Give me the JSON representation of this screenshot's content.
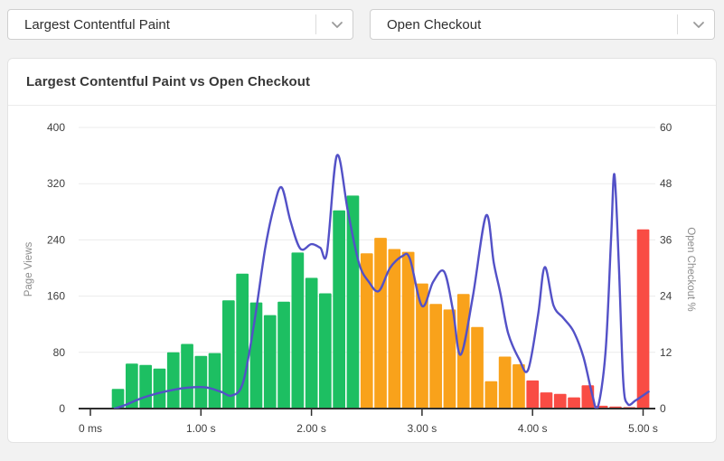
{
  "controls": {
    "metric_select": {
      "value": "Largest Contentful Paint"
    },
    "conversion_select": {
      "value": "Open Checkout"
    }
  },
  "card": {
    "title": "Largest Contentful Paint vs Open Checkout"
  },
  "colors": {
    "bar_good": "#1dbf62",
    "bar_needs_improvement": "#f9a21b",
    "bar_poor": "#f94c44",
    "line": "#5351c7",
    "gridline": "#ebebeb",
    "axis_line": "#2e2e2e"
  },
  "chart_data": {
    "type": "bar",
    "subtype": "histogram-with-line-overlay",
    "title": "Largest Contentful Paint vs Open Checkout",
    "x_axis": {
      "tick_labels": [
        "0 ms",
        "1.00 s",
        "2.00 s",
        "3.00 s",
        "4.00 s",
        "5.00 s"
      ],
      "tick_seconds": [
        0,
        1,
        2,
        3,
        4,
        5
      ],
      "range_seconds": [
        0,
        5.0625
      ],
      "grid": false
    },
    "left_axis": {
      "label": "Page Views",
      "ticks": [
        0,
        80,
        160,
        240,
        320,
        400
      ],
      "range": [
        0,
        400
      ],
      "grid": true
    },
    "right_axis": {
      "label": "Open Checkout %",
      "ticks": [
        0,
        12,
        24,
        36,
        48,
        60
      ],
      "range": [
        0,
        60
      ]
    },
    "histogram": {
      "series_name": "Page Views",
      "first_bin_start_s": 0.1875,
      "bin_width_s": 0.125,
      "values": [
        28,
        64,
        62,
        57,
        80,
        92,
        75,
        79,
        154,
        192,
        151,
        133,
        152,
        222,
        186,
        164,
        282,
        303,
        221,
        243,
        227,
        223,
        178,
        149,
        141,
        163,
        116,
        39,
        74,
        63,
        40,
        23,
        21,
        16,
        33,
        4,
        3,
        2,
        255
      ],
      "segment_keys": [
        "good",
        "good",
        "good",
        "good",
        "good",
        "good",
        "good",
        "good",
        "good",
        "good",
        "good",
        "good",
        "good",
        "good",
        "good",
        "good",
        "good",
        "good",
        "needs_improvement",
        "needs_improvement",
        "needs_improvement",
        "needs_improvement",
        "needs_improvement",
        "needs_improvement",
        "needs_improvement",
        "needs_improvement",
        "needs_improvement",
        "needs_improvement",
        "needs_improvement",
        "needs_improvement",
        "poor",
        "poor",
        "poor",
        "poor",
        "poor",
        "poor",
        "poor",
        "poor",
        "poor"
      ]
    },
    "line": {
      "series_name": "Open Checkout %",
      "points": [
        [
          0.22,
          0
        ],
        [
          0.32,
          0.8
        ],
        [
          0.45,
          2.1
        ],
        [
          0.6,
          3.2
        ],
        [
          0.75,
          4.0
        ],
        [
          0.9,
          4.5
        ],
        [
          1.05,
          4.5
        ],
        [
          1.18,
          3.6
        ],
        [
          1.28,
          2.8
        ],
        [
          1.38,
          5.5
        ],
        [
          1.48,
          18
        ],
        [
          1.58,
          34
        ],
        [
          1.66,
          43
        ],
        [
          1.73,
          47.2
        ],
        [
          1.81,
          40
        ],
        [
          1.9,
          34.1
        ],
        [
          2.0,
          35.1
        ],
        [
          2.08,
          34.3
        ],
        [
          2.14,
          33.3
        ],
        [
          2.23,
          54
        ],
        [
          2.33,
          42
        ],
        [
          2.43,
          31
        ],
        [
          2.52,
          27
        ],
        [
          2.61,
          25.1
        ],
        [
          2.71,
          30
        ],
        [
          2.82,
          32.5
        ],
        [
          2.89,
          32
        ],
        [
          3.0,
          21.9
        ],
        [
          3.1,
          27
        ],
        [
          3.2,
          29.2
        ],
        [
          3.28,
          21
        ],
        [
          3.35,
          11.5
        ],
        [
          3.46,
          24
        ],
        [
          3.58,
          41.2
        ],
        [
          3.65,
          31
        ],
        [
          3.71,
          24.5
        ],
        [
          3.78,
          16
        ],
        [
          3.88,
          10.5
        ],
        [
          3.96,
          8.3
        ],
        [
          4.05,
          20
        ],
        [
          4.11,
          30.2
        ],
        [
          4.19,
          22
        ],
        [
          4.28,
          19.3
        ],
        [
          4.37,
          16.5
        ],
        [
          4.46,
          11
        ],
        [
          4.54,
          3
        ],
        [
          4.59,
          0.3
        ],
        [
          4.66,
          12
        ],
        [
          4.71,
          36
        ],
        [
          4.74,
          50
        ],
        [
          4.78,
          31
        ],
        [
          4.82,
          6
        ],
        [
          4.86,
          1
        ],
        [
          4.93,
          1.7
        ],
        [
          5.0,
          2.8
        ],
        [
          5.05,
          3.6
        ]
      ]
    }
  }
}
